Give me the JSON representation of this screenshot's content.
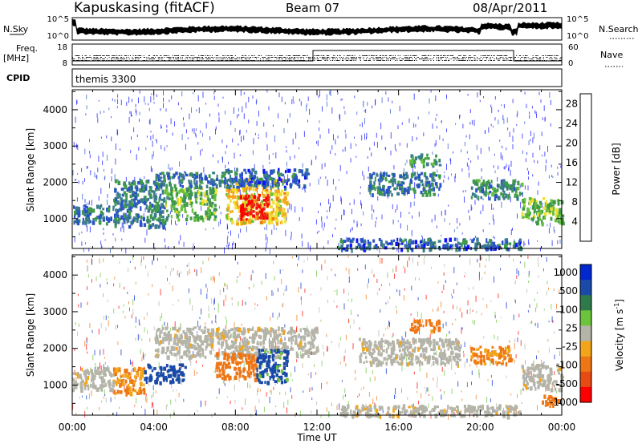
{
  "header": {
    "station": "Kapuskasing (fitACF)",
    "beam": "Beam 07",
    "date": "08/Apr/2011"
  },
  "summary_panels": {
    "nsky": {
      "label": "N.Sky",
      "ticks": [
        "10^5",
        "10^0"
      ]
    },
    "nsearch": {
      "label": "N.Search",
      "ticks": [
        "10^5",
        "10^0"
      ]
    },
    "freq": {
      "label_line1": "Freq.",
      "label_line2": "[MHz]",
      "ticks": [
        "18",
        "8"
      ]
    },
    "nave": {
      "label": "Nave",
      "ticks": [
        "60",
        "0"
      ]
    },
    "cpid": {
      "label": "CPID",
      "value": "themis 3300"
    }
  },
  "colors": {
    "power_scale": [
      "#1010ff",
      "#2a52c8",
      "#3a7c8c",
      "#3f9a48",
      "#67c13c",
      "#f0e030",
      "#f4a81c",
      "#f07b16",
      "#e83018",
      "#ff0000"
    ],
    "velocity_scale": [
      "#0028d0",
      "#1a4aa8",
      "#2e7a4a",
      "#6cc43c",
      "#b4b4a8",
      "#f3a51a",
      "#ef7614",
      "#e84a14",
      "#ff0000"
    ],
    "ground_scatter": "#b4b4a8"
  },
  "chart_data": [
    {
      "type": "heatmap",
      "title": "",
      "xlabel": "Time UT",
      "ylabel": "Slant Range [km]",
      "x_ticks": [
        "00:00",
        "04:00",
        "08:00",
        "12:00",
        "16:00",
        "20:00",
        "00:00"
      ],
      "xlim_hours": [
        0,
        24
      ],
      "y_ticks": [
        1000,
        2000,
        3000,
        4000
      ],
      "ylim": [
        180,
        4550
      ],
      "colorbar": {
        "label": "Power [dB]",
        "ticks": [
          4,
          8,
          12,
          16,
          20,
          24,
          28
        ],
        "range": [
          0,
          30
        ]
      },
      "regions": [
        {
          "t0": 0.0,
          "t1": 2.0,
          "r0": 900,
          "r1": 1400,
          "value": 7
        },
        {
          "t0": 2.0,
          "t1": 4.5,
          "r0": 800,
          "r1": 2100,
          "value": 8
        },
        {
          "t0": 4.5,
          "t1": 7.0,
          "r0": 1000,
          "r1": 1900,
          "value": 12
        },
        {
          "t0": 4.0,
          "t1": 7.5,
          "r0": 1900,
          "r1": 2300,
          "value": 7
        },
        {
          "t0": 7.5,
          "t1": 10.5,
          "r0": 900,
          "r1": 2100,
          "value": 18
        },
        {
          "t0": 8.2,
          "t1": 9.6,
          "r0": 1000,
          "r1": 1700,
          "value": 28
        },
        {
          "t0": 7.5,
          "t1": 11.5,
          "r0": 1900,
          "r1": 2400,
          "value": 6
        },
        {
          "t0": 13.0,
          "t1": 22.0,
          "r0": 180,
          "r1": 480,
          "value": 6
        },
        {
          "t0": 14.5,
          "t1": 18.0,
          "r0": 1700,
          "r1": 2300,
          "value": 7
        },
        {
          "t0": 16.5,
          "t1": 18.0,
          "r0": 2500,
          "r1": 2800,
          "value": 11
        },
        {
          "t0": 19.5,
          "t1": 22.0,
          "r0": 1600,
          "r1": 2100,
          "value": 9
        },
        {
          "t0": 22.0,
          "t1": 24.0,
          "r0": 900,
          "r1": 1600,
          "value": 13
        }
      ]
    },
    {
      "type": "heatmap",
      "title": "",
      "xlabel": "Time UT",
      "ylabel": "Slant Range [km]",
      "x_ticks": [
        "00:00",
        "04:00",
        "08:00",
        "12:00",
        "16:00",
        "20:00",
        "00:00"
      ],
      "xlim_hours": [
        0,
        24
      ],
      "y_ticks": [
        1000,
        2000,
        3000,
        4000
      ],
      "ylim": [
        180,
        4550
      ],
      "colorbar": {
        "label": "Velocity [m s^-1]",
        "ticks": [
          "1000",
          "500",
          "100",
          "25",
          "-25",
          "-100",
          "-500",
          "-1000"
        ]
      },
      "regions": [
        {
          "t0": 0.0,
          "t1": 2.0,
          "r0": 900,
          "r1": 1500,
          "value": "gs"
        },
        {
          "t0": 2.0,
          "t1": 3.5,
          "r0": 800,
          "r1": 1500,
          "value": -100
        },
        {
          "t0": 3.5,
          "t1": 5.5,
          "r0": 1100,
          "r1": 1600,
          "value": 200
        },
        {
          "t0": 4.0,
          "t1": 12.0,
          "r0": 1800,
          "r1": 2600,
          "value": "gs"
        },
        {
          "t0": 7.0,
          "t1": 9.0,
          "r0": 1200,
          "r1": 1900,
          "value": -200
        },
        {
          "t0": 9.0,
          "t1": 10.5,
          "r0": 1100,
          "r1": 2000,
          "value": 150
        },
        {
          "t0": 13.0,
          "t1": 22.0,
          "r0": 180,
          "r1": 480,
          "value": "gs"
        },
        {
          "t0": 14.0,
          "t1": 19.0,
          "r0": 1600,
          "r1": 2300,
          "value": "gs"
        },
        {
          "t0": 16.5,
          "t1": 18.0,
          "r0": 2500,
          "r1": 2800,
          "value": -150
        },
        {
          "t0": 19.5,
          "t1": 21.5,
          "r0": 1600,
          "r1": 2100,
          "value": -120
        },
        {
          "t0": 22.0,
          "t1": 24.0,
          "r0": 900,
          "r1": 1600,
          "value": "gs"
        },
        {
          "t0": 23.0,
          "t1": 23.8,
          "r0": 450,
          "r1": 750,
          "value": -300
        }
      ]
    }
  ]
}
